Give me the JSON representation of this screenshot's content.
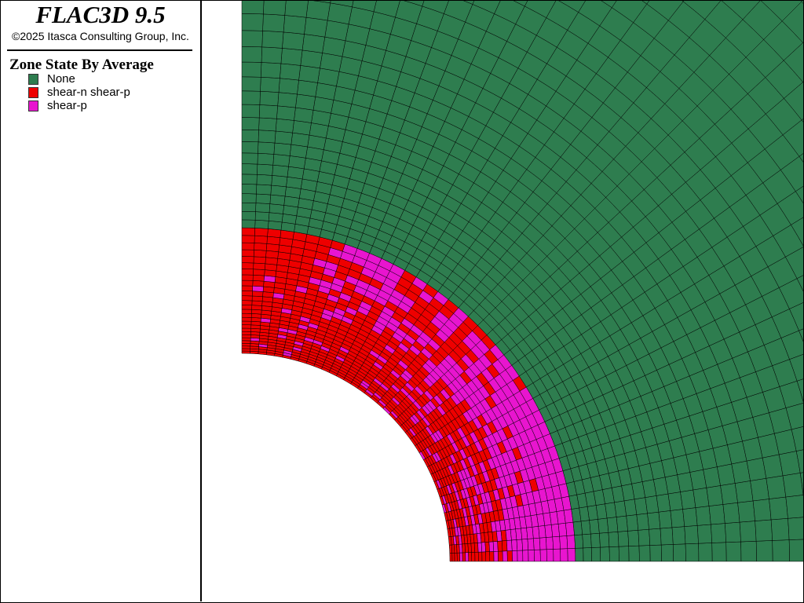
{
  "app": {
    "title": "FLAC3D 9.5",
    "copyright": "©2025 Itasca Consulting Group, Inc."
  },
  "legend": {
    "title": "Zone State By Average",
    "items": [
      {
        "label": "None",
        "color": "#2e7d4f"
      },
      {
        "label": "shear-n shear-p",
        "color": "#ee0000"
      },
      {
        "label": "shear-p",
        "color": "#e815cf"
      }
    ]
  },
  "model": {
    "view": "quarter-annulus plastic zone around circular tunnel",
    "mesh_color": "#000000"
  }
}
